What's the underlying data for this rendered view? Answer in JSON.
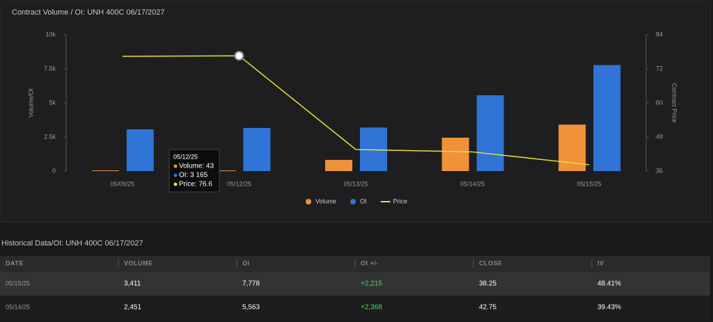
{
  "chart_data": {
    "type": "bar-line",
    "title": "Contract Volume / OI: UNH 400C 06/17/2027",
    "y_label": "Volume/OI",
    "y2_label": "Contract Price",
    "categories": [
      "05/09/25",
      "05/12/25",
      "05/13/25",
      "05/14/25",
      "05/15/25"
    ],
    "series": [
      {
        "name": "Volume",
        "color": "#f0923a",
        "kind": "bar",
        "values": [
          50,
          43,
          820,
          2451,
          3411
        ]
      },
      {
        "name": "OI",
        "color": "#2f74d6",
        "kind": "bar",
        "values": [
          3060,
          3165,
          3195,
          5563,
          7778
        ]
      },
      {
        "name": "Price",
        "color": "#e8e03a",
        "kind": "line",
        "axis": "y2",
        "values": [
          76.4,
          76.6,
          43.6,
          42.75,
          38.25
        ]
      }
    ],
    "ylim": [
      0,
      10000
    ],
    "yticks": [
      0,
      {
        "value": 2500,
        "label": "2.5k"
      },
      {
        "value": 5000,
        "label": "5k"
      },
      {
        "value": 7500,
        "label": "7.5k"
      },
      {
        "value": 10000,
        "label": "10k"
      }
    ],
    "y2lim": [
      36,
      84
    ],
    "y2ticks": [
      36,
      48,
      60,
      72,
      84
    ],
    "legend": "bottom",
    "tooltip": {
      "index": 1,
      "title": "05/12/25",
      "lines": [
        "Volume: 43",
        "OI: 3 165",
        "Price: 76.6"
      ]
    }
  },
  "table": {
    "title": "Historical Data/OI: UNH 400C 06/17/2027",
    "header": [
      "DATE",
      "VOLUME",
      "OI",
      "OI +/-",
      "CLOSE",
      "IV"
    ],
    "rows": [
      [
        "05/15/25",
        "3,411",
        "7,778",
        "+2,215",
        "38.25",
        "48.41%"
      ],
      [
        "05/14/25",
        "2,451",
        "5,563",
        "+2,368",
        "42.75",
        "39.43%"
      ]
    ]
  }
}
